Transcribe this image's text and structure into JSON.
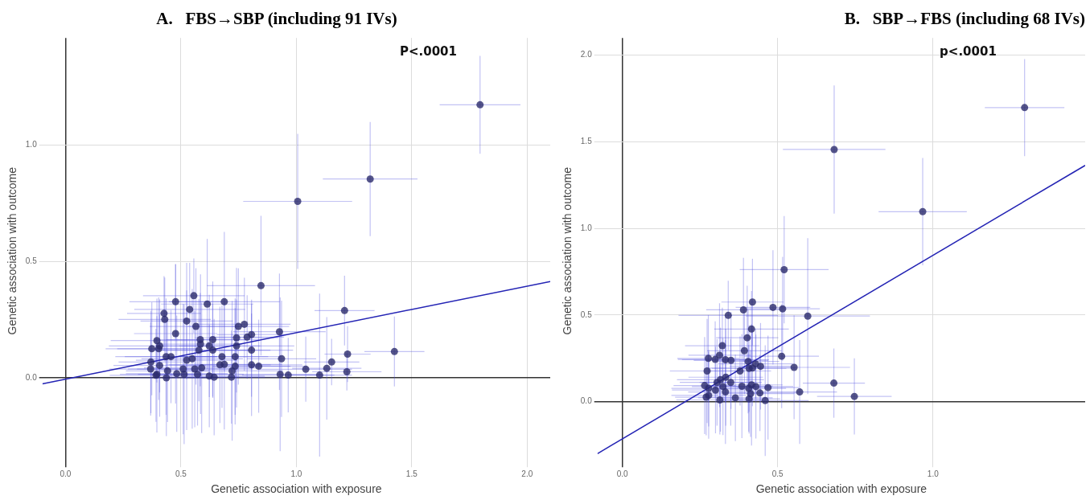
{
  "chart_data": [
    {
      "type": "scatter",
      "title": "A.   FBS→SBP (including 91 IVs)",
      "xlabel": "Genetic association with exposure",
      "ylabel": "Genetic association with outcome",
      "annotations": [
        "P<.0001"
      ],
      "xlim": [
        -0.1,
        2.1
      ],
      "ylim": [
        -0.37,
        1.46
      ],
      "xticks": [
        {
          "value": 0,
          "label": "0.0"
        },
        {
          "value": 0.5,
          "label": "0.5"
        },
        {
          "value": 1,
          "label": "1.0"
        },
        {
          "value": 1.5,
          "label": "1.5"
        },
        {
          "value": 2,
          "label": "2.0"
        }
      ],
      "yticks": [
        {
          "value": 0,
          "label": "0.0"
        },
        {
          "value": 0.5,
          "label": "0.5"
        },
        {
          "value": 1,
          "label": "1.0"
        }
      ],
      "grid": true,
      "series": [
        {
          "type": "scatter",
          "color": "#2b2b6b",
          "marker": "circle",
          "x": [
            1.796,
            1.32,
            1.006,
            0.847,
            1.209,
            1.425,
            1.222,
            1.219,
            1.153,
            1.132,
            1.101,
            1.041,
            0.965,
            0.93,
            0.936,
            0.927,
            0.837,
            0.806,
            0.806,
            0.806,
            0.787,
            0.775,
            0.749,
            0.741,
            0.741,
            0.735,
            0.735,
            0.722,
            0.719,
            0.688,
            0.678,
            0.688,
            0.669,
            0.638,
            0.638,
            0.623,
            0.614,
            0.623,
            0.644,
            0.59,
            0.584,
            0.578,
            0.585,
            0.565,
            0.556,
            0.538,
            0.525,
            0.549,
            0.56,
            0.572,
            0.525,
            0.51,
            0.514,
            0.482,
            0.477,
            0.477,
            0.457,
            0.436,
            0.442,
            0.43,
            0.427,
            0.437,
            0.408,
            0.408,
            0.396,
            0.404,
            0.374,
            0.369,
            0.396,
            0.392,
            0.37
          ],
          "values": [
            1.173,
            0.854,
            0.758,
            0.396,
            0.289,
            0.113,
            0.102,
            0.026,
            0.068,
            0.041,
            0.012,
            0.037,
            0.012,
            0.015,
            0.082,
            0.198,
            0.05,
            0.056,
            0.119,
            0.186,
            0.175,
            0.23,
            0.221,
            0.172,
            0.137,
            0.091,
            0.05,
            0.03,
            0.003,
            0.058,
            0.091,
            0.327,
            0.056,
            0.164,
            0.119,
            0.137,
            0.317,
            0.008,
            0.003,
            0.043,
            0.164,
            0.119,
            0.145,
            0.221,
            0.353,
            0.294,
            0.244,
            0.082,
            0.038,
            0.015,
            0.076,
            0.038,
            0.015,
            0.018,
            0.19,
            0.327,
            0.091,
            0.091,
            0.03,
            0.251,
            0.277,
            0,
            0.053,
            0.137,
            0.16,
            0.125,
            0.125,
            0.038,
            0.015,
            0.011,
            0.068
          ],
          "xerrors": [
            0.175,
            0.205,
            0.236,
            0.234,
            0.13,
            0.13,
            0.1,
            0.15,
            0.12,
            0.15,
            0.14,
            0.2,
            0.2,
            0.18,
            0.15,
            0.2,
            0.2,
            0.22,
            0.18,
            0.15,
            0.16,
            0.2,
            0.22,
            0.18,
            0.25,
            0.2,
            0.24,
            0.22,
            0.2,
            0.25,
            0.2,
            0.24,
            0.22,
            0.2,
            0.25,
            0.22,
            0.2,
            0.24,
            0.22,
            0.25,
            0.2,
            0.22,
            0.18,
            0.2,
            0.22,
            0.24,
            0.2,
            0.22,
            0.25,
            0.2,
            0.22,
            0.24,
            0.2,
            0.22,
            0.18,
            0.2,
            0.2,
            0.22,
            0.18,
            0.2,
            0.16,
            0.18,
            0.2,
            0.22,
            0.2,
            0.18,
            0.2,
            0.18,
            0.16,
            0.2,
            0.14
          ],
          "errors": [
            0.21,
            0.245,
            0.29,
            0.3,
            0.15,
            0.15,
            0.12,
            0.08,
            0.1,
            0.22,
            0.35,
            0.14,
            0.16,
            0.33,
            0.25,
            0.25,
            0.2,
            0.22,
            0.2,
            0.15,
            0.18,
            0.2,
            0.25,
            0.3,
            0.2,
            0.25,
            0.25,
            0.3,
            0.2,
            0.28,
            0.22,
            0.3,
            0.25,
            0.25,
            0.2,
            0.22,
            0.28,
            0.22,
            0.25,
            0.28,
            0.2,
            0.22,
            0.3,
            0.25,
            0.16,
            0.2,
            0.25,
            0.3,
            0.25,
            0.22,
            0.3,
            0.28,
            0.3,
            0.25,
            0.3,
            0.16,
            0.2,
            0.25,
            0.22,
            0.18,
            0.16,
            0.25,
            0.22,
            0.2,
            0.18,
            0.22,
            0.2,
            0.2,
            0.25,
            0.2,
            0.22
          ]
        },
        {
          "type": "line",
          "color": "#2323b4",
          "marker": "none",
          "x": [
            -0.1,
            2.1
          ],
          "values": [
            -0.026,
            0.414
          ]
        }
      ]
    },
    {
      "type": "scatter",
      "title": "B.   SBP→FBS (including 68 IVs)",
      "xlabel": "Genetic association with exposure",
      "ylabel": "Genetic association with outcome",
      "annotations": [
        "p<.0001"
      ],
      "xlim": [
        -0.08,
        1.49
      ],
      "ylim": [
        -0.36,
        2.1
      ],
      "xticks": [
        {
          "value": 0,
          "label": "0.0"
        },
        {
          "value": 0.5,
          "label": "0.5"
        },
        {
          "value": 1,
          "label": "1.0"
        }
      ],
      "yticks": [
        {
          "value": 0,
          "label": "0.0"
        },
        {
          "value": 0.5,
          "label": "0.5"
        },
        {
          "value": 1,
          "label": "1.0"
        },
        {
          "value": 1.5,
          "label": "1.5"
        },
        {
          "value": 2,
          "label": "2.0"
        }
      ],
      "grid": true,
      "series": [
        {
          "type": "scatter",
          "color": "#2b2b6b",
          "marker": "circle",
          "x": [
            1.295,
            0.682,
            0.967,
            0.521,
            0.597,
            0.485,
            0.516,
            0.419,
            0.39,
            0.341,
            0.416,
            0.402,
            0.393,
            0.322,
            0.513,
            0.553,
            0.445,
            0.429,
            0.405,
            0.419,
            0.408,
            0.379,
            0.35,
            0.332,
            0.313,
            0.299,
            0.277,
            0.273,
            0.349,
            0.333,
            0.316,
            0.305,
            0.324,
            0.332,
            0.3,
            0.278,
            0.265,
            0.278,
            0.27,
            0.314,
            0.364,
            0.385,
            0.407,
            0.416,
            0.43,
            0.413,
            0.408,
            0.443,
            0.469,
            0.46,
            0.571,
            0.681,
            0.747
          ],
          "values": [
            1.698,
            1.456,
            1.097,
            0.762,
            0.494,
            0.544,
            0.536,
            0.575,
            0.53,
            0.498,
            0.419,
            0.369,
            0.294,
            0.323,
            0.262,
            0.198,
            0.204,
            0.218,
            0.232,
            0.194,
            0.192,
            0.177,
            0.238,
            0.242,
            0.268,
            0.244,
            0.25,
            0.177,
            0.111,
            0.141,
            0.127,
            0.111,
            0.087,
            0.056,
            0.067,
            0.077,
            0.093,
            0.036,
            0.026,
            0.01,
            0.022,
            0.089,
            0.077,
            0.097,
            0.087,
            0.046,
            0.016,
            0.05,
            0.081,
            0.006,
            0.056,
            0.107,
            0.03
          ],
          "xerrors": [
            0.128,
            0.165,
            0.142,
            0.143,
            0.2,
            0.12,
            0.12,
            0.1,
            0.12,
            0.16,
            0.12,
            0.1,
            0.12,
            0.12,
            0.12,
            0.18,
            0.1,
            0.12,
            0.1,
            0.14,
            0.12,
            0.1,
            0.12,
            0.14,
            0.1,
            0.12,
            0.1,
            0.12,
            0.1,
            0.12,
            0.14,
            0.12,
            0.1,
            0.12,
            0.14,
            0.12,
            0.1,
            0.12,
            0.1,
            0.14,
            0.12,
            0.1,
            0.12,
            0.1,
            0.12,
            0.14,
            0.1,
            0.12,
            0.1,
            0.14,
            0.12,
            0.1,
            0.12
          ],
          "errors": [
            0.28,
            0.37,
            0.31,
            0.31,
            0.45,
            0.33,
            0.3,
            0.25,
            0.3,
            0.2,
            0.22,
            0.3,
            0.25,
            0.22,
            0.3,
            0.3,
            0.25,
            0.2,
            0.3,
            0.22,
            0.25,
            0.2,
            0.28,
            0.25,
            0.3,
            0.22,
            0.25,
            0.3,
            0.25,
            0.28,
            0.3,
            0.25,
            0.28,
            0.3,
            0.25,
            0.22,
            0.28,
            0.25,
            0.22,
            0.2,
            0.25,
            0.3,
            0.25,
            0.35,
            0.3,
            0.25,
            0.2,
            0.22,
            0.3,
            0.32,
            0.3,
            0.2,
            0.22
          ]
        },
        {
          "type": "line",
          "color": "#2323b4",
          "marker": "none",
          "x": [
            -0.08,
            1.49
          ],
          "values": [
            -0.3,
            1.364
          ]
        }
      ]
    }
  ]
}
